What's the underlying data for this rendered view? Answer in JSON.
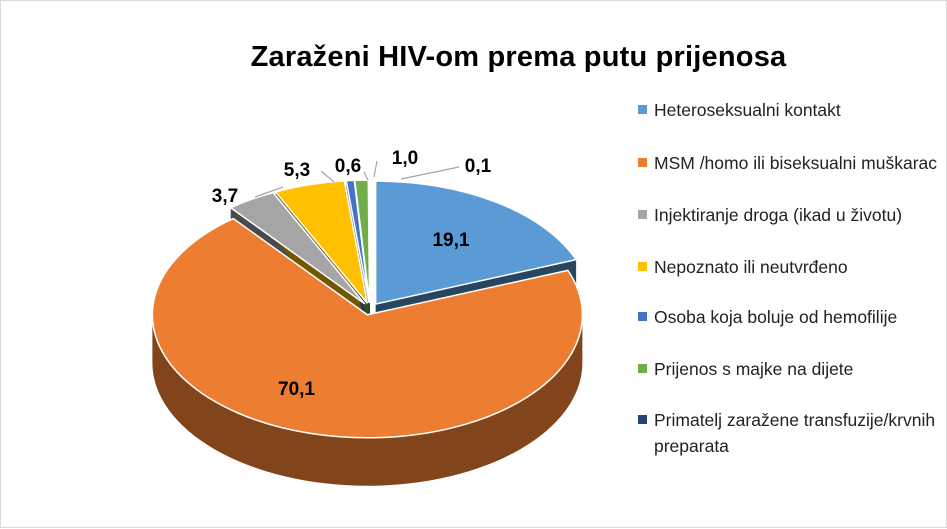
{
  "chart_data": {
    "type": "pie",
    "title": "Zaraženi HIV-om prema putu prijenosa",
    "slices": [
      {
        "name": "Heteroseksualni kontakt",
        "value": 19.1,
        "label": "19,1",
        "color": "#5b9bd5"
      },
      {
        "name": "MSM /homo ili biseksualni muškarac",
        "value": 70.1,
        "label": "70,1",
        "color": "#ed7d31"
      },
      {
        "name": "Injektiranje droga (ikad u životu)",
        "value": 3.7,
        "label": "3,7",
        "color": "#a5a5a5"
      },
      {
        "name": "Nepoznato ili neutvrđeno",
        "value": 5.3,
        "label": "5,3",
        "color": "#ffc000"
      },
      {
        "name": "Osoba koja boluje od hemofilije",
        "value": 0.6,
        "label": "0,6",
        "color": "#4472c4"
      },
      {
        "name": "Prijenos s majke na dijete",
        "value": 1.0,
        "label": "1,0",
        "color": "#70ad47"
      },
      {
        "name": "Primatelj zaražene transfuzije/krvnih preparata",
        "value": 0.1,
        "label": "0,1",
        "color": "#264478"
      }
    ],
    "legend_position": "right"
  }
}
